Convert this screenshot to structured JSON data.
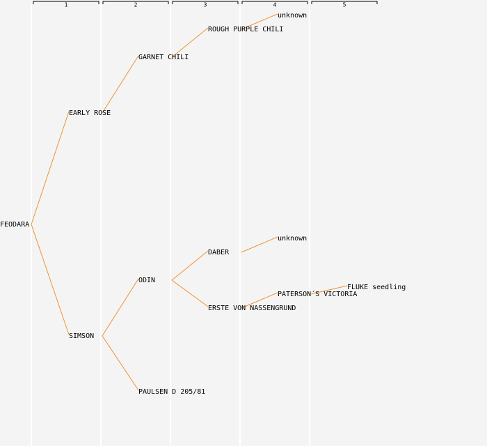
{
  "generations": [
    "1",
    "2",
    "3",
    "4",
    "5"
  ],
  "tree": {
    "label": "FEODARA",
    "parents": [
      {
        "label": "EARLY ROSE",
        "parents": [
          {
            "label": "GARNET CHILI",
            "parents": [
              {
                "label": "ROUGH PURPLE CHILI",
                "parents": [
                  {
                    "label": "unknown"
                  },
                  null
                ]
              },
              null
            ]
          },
          null
        ]
      },
      {
        "label": "SIMSON",
        "parents": [
          {
            "label": "ODIN",
            "color": "#0000cc",
            "parents": [
              {
                "label": "DABER",
                "parents": [
                  {
                    "label": "unknown"
                  },
                  null
                ]
              },
              {
                "label": "ERSTE VON NASSENGRUND",
                "parents": [
                  {
                    "label": "PATERSON´S VICTORIA",
                    "parents": [
                      {
                        "label": "FLUKE seedling"
                      },
                      null
                    ]
                  },
                  null
                ]
              }
            ]
          },
          {
            "label": "PAULSEN D 205/81"
          }
        ]
      }
    ]
  }
}
